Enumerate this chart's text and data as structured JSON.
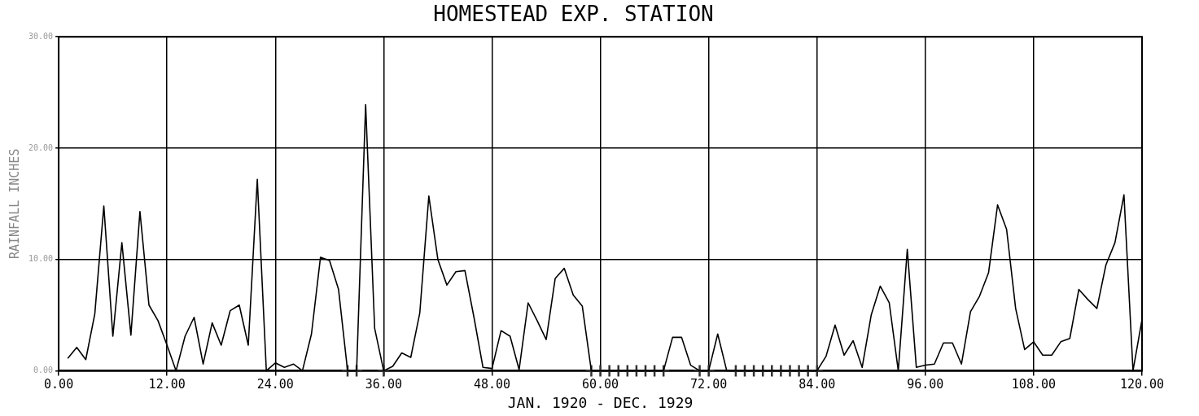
{
  "chart_data": {
    "type": "line",
    "title": "HOMESTEAD EXP. STATION",
    "xlabel": "JAN. 1920 - DEC. 1929",
    "ylabel": "RAINFALL INCHES",
    "xlim": [
      0,
      120
    ],
    "xticks": [
      {
        "value": 0,
        "label": "0.00"
      },
      {
        "value": 12,
        "label": "12.00"
      },
      {
        "value": 24,
        "label": "24.00"
      },
      {
        "value": 36,
        "label": "36.00"
      },
      {
        "value": 48,
        "label": "48.00"
      },
      {
        "value": 60,
        "label": "60.00"
      },
      {
        "value": 72,
        "label": "72.00"
      },
      {
        "value": 84,
        "label": "84.00"
      },
      {
        "value": 96,
        "label": "96.00"
      },
      {
        "value": 108,
        "label": "108.00"
      },
      {
        "value": 120,
        "label": "120.00"
      }
    ],
    "ylim": [
      0,
      30
    ],
    "yticks": [
      {
        "value": 0,
        "label": "0.00"
      },
      {
        "value": 10,
        "label": "10.00"
      },
      {
        "value": 20,
        "label": "20.00"
      },
      {
        "value": 30,
        "label": "30.00"
      }
    ],
    "grid": true,
    "legend": false,
    "series": [
      {
        "color": "#000000",
        "marker": "none",
        "line_style": "solid",
        "x": [
          1,
          2,
          3,
          4,
          5,
          6,
          7,
          8,
          9,
          10,
          11,
          12,
          13,
          14,
          15,
          16,
          17,
          18,
          19,
          20,
          21,
          22,
          23,
          24,
          25,
          26,
          27,
          28,
          29,
          30,
          31,
          32,
          33,
          34,
          35,
          36,
          37,
          38,
          39,
          40,
          41,
          42,
          43,
          44,
          45,
          46,
          47,
          48,
          49,
          50,
          51,
          52,
          53,
          54,
          55,
          56,
          57,
          58,
          59,
          60,
          61,
          62,
          63,
          64,
          65,
          66,
          67,
          68,
          69,
          70,
          71,
          72,
          73,
          74,
          75,
          76,
          77,
          78,
          79,
          80,
          81,
          82,
          83,
          84,
          85,
          86,
          87,
          88,
          89,
          90,
          91,
          92,
          93,
          94,
          95,
          96,
          97,
          98,
          99,
          100,
          101,
          102,
          103,
          104,
          105,
          106,
          107,
          108,
          109,
          110,
          111,
          112,
          113,
          114,
          115,
          116,
          117,
          118,
          119,
          120
        ],
        "values": [
          1.1,
          2.1,
          1.0,
          5.1,
          14.8,
          3.1,
          11.5,
          3.2,
          14.3,
          5.9,
          4.5,
          2.3,
          0,
          3.1,
          4.8,
          0.6,
          4.3,
          2.3,
          5.4,
          5.9,
          2.3,
          17.2,
          0,
          0.7,
          0.3,
          0.6,
          0,
          3.3,
          10.2,
          9.9,
          7.3,
          0,
          0,
          23.9,
          3.8,
          0,
          0.4,
          1.6,
          1.2,
          5.2,
          15.7,
          10.0,
          7.7,
          8.9,
          9.0,
          4.8,
          0.3,
          0.2,
          3.6,
          3.1,
          0.1,
          6.1,
          4.5,
          2.8,
          8.3,
          9.2,
          6.8,
          5.8,
          0,
          0,
          0,
          0,
          0,
          0,
          0,
          0,
          0,
          3.0,
          3.0,
          0.5,
          0,
          0,
          3.3,
          0,
          0,
          0,
          0,
          0,
          0,
          0,
          0,
          0,
          0,
          0,
          1.3,
          4.1,
          1.4,
          2.7,
          0.3,
          5.0,
          7.6,
          6.1,
          0,
          10.9,
          0.3,
          0.5,
          0.6,
          2.5,
          2.5,
          0.6,
          5.3,
          6.7,
          8.8,
          14.9,
          12.7,
          5.6,
          1.9,
          2.6,
          1.4,
          1.4,
          2.6,
          2.9,
          7.3,
          6.4,
          5.6,
          9.5,
          11.5,
          15.8,
          0,
          4.6
        ]
      },
      {
        "type": "scatter",
        "color": "#333333",
        "marker": "cross",
        "x": [
          32,
          33,
          36,
          59,
          60,
          61,
          62,
          63,
          64,
          65,
          66,
          67,
          71,
          72,
          75,
          76,
          77,
          78,
          79,
          80,
          81,
          82,
          83,
          84
        ],
        "values": [
          0,
          0,
          0,
          0,
          0,
          0,
          0,
          0,
          0,
          0,
          0,
          0,
          0,
          0,
          0,
          0,
          0,
          0,
          0,
          0,
          0,
          0,
          0,
          0
        ]
      }
    ]
  }
}
